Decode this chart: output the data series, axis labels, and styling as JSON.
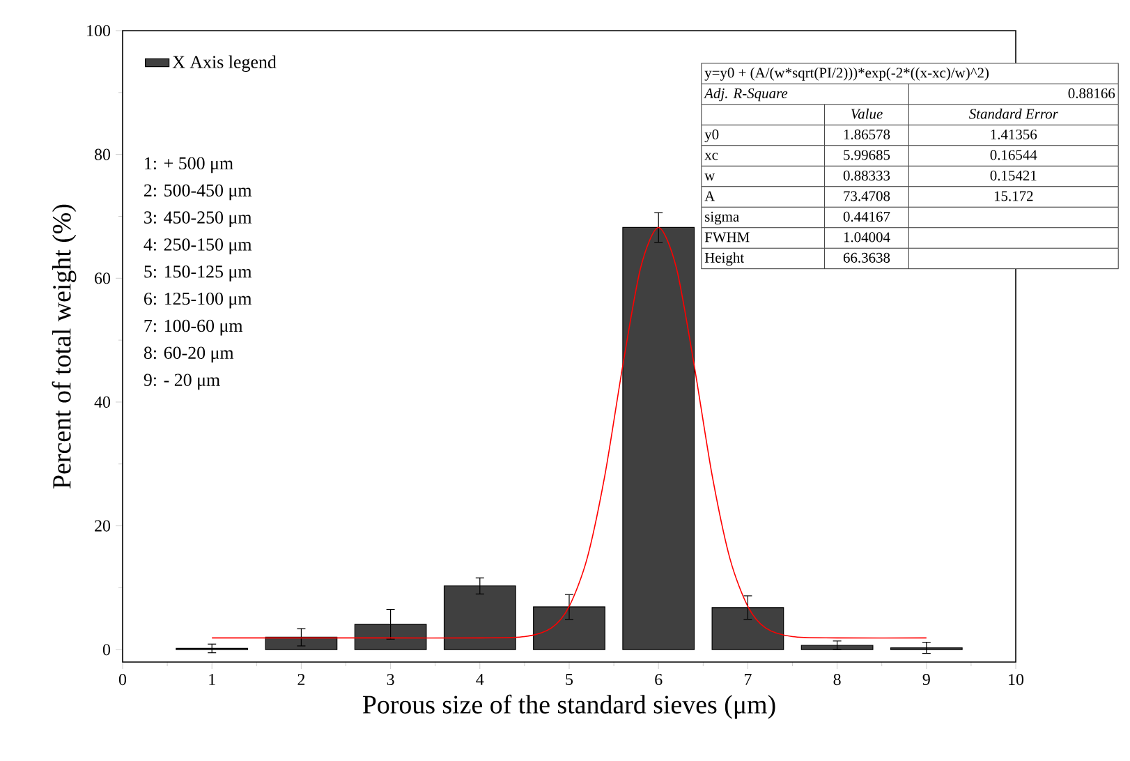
{
  "chart_data": {
    "type": "bar",
    "xlabel": "Porous size of the standard sieves (μm)",
    "ylabel": "Percent of total weight (%)",
    "x": [
      1,
      2,
      3,
      4,
      5,
      6,
      7,
      8,
      9
    ],
    "series": [
      {
        "name": "X Axis legend",
        "color": "#404040",
        "values": [
          0.2,
          2.0,
          4.1,
          10.3,
          6.9,
          68.2,
          6.8,
          0.7,
          0.3
        ],
        "errors": [
          0.7,
          1.4,
          2.4,
          1.3,
          2.0,
          2.4,
          1.9,
          0.7,
          0.9
        ]
      },
      {
        "type": "line",
        "color": "#ff0000",
        "x": [
          1,
          2,
          3,
          4,
          4.5,
          4.8,
          5,
          5.2,
          5.4,
          5.6,
          5.8,
          6,
          6.2,
          6.4,
          6.6,
          6.8,
          7,
          7.2,
          7.5,
          8,
          9
        ],
        "values": [
          1.9,
          1.9,
          1.9,
          1.9,
          2.1,
          3.5,
          7.0,
          14.7,
          28.2,
          45.9,
          61.7,
          68.2,
          61.7,
          45.9,
          28.2,
          14.7,
          7.0,
          3.5,
          2.1,
          1.9,
          1.9
        ]
      }
    ],
    "xlim": [
      0,
      10
    ],
    "ylim": [
      -2,
      100
    ],
    "xticks": [
      0,
      1,
      2,
      3,
      4,
      5,
      6,
      7,
      8,
      9,
      10
    ],
    "yticks": [
      0,
      20,
      40,
      60,
      80,
      100
    ],
    "legend": "top left",
    "annotations": [
      "1: + 500 μm",
      "2: 500-450 μm",
      "3: 450-250 μm",
      "4: 250-150 μm",
      "5: 150-125 μm",
      "6: 125-100 μm",
      "7: 100-60  μm",
      "8: 60-20 μm",
      "9: - 20 μm",
      "y=y0 + (A/(w",
      "*sqrt(PI/2)))",
      "*exp(-2",
      "*((x-xc)/w)^2)",
      "Adj. R-Square",
      "0.88166",
      "Value",
      "Standard Error",
      "y0",
      "1.86578",
      "1.41356",
      "xc",
      "5.99685",
      "0.16544",
      "w",
      "0.88333",
      "0.15421",
      "A",
      "73.4708",
      "15.172",
      "sigma",
      "0.44167",
      "FWHM",
      "1.04004",
      "Height",
      "66.3638"
    ]
  }
}
